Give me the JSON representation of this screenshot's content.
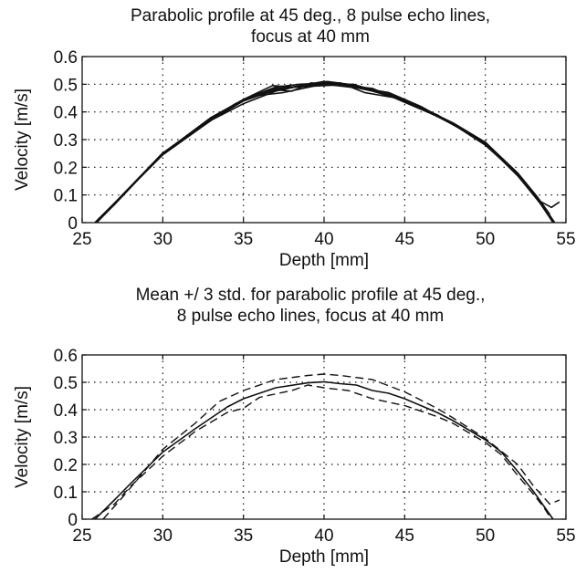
{
  "chart_data": [
    {
      "type": "line",
      "title": [
        "Parabolic profile at 45 deg., 8 pulse echo lines,",
        "focus at 40 mm"
      ],
      "xlabel": "Depth [mm]",
      "ylabel": "Velocity [m/s]",
      "xlim": [
        25,
        55
      ],
      "ylim": [
        0,
        0.6
      ],
      "xticks": [
        "25",
        "30",
        "35",
        "40",
        "45",
        "50",
        "55"
      ],
      "yticks": [
        "0",
        "0.1",
        "0.2",
        "0.3",
        "0.4",
        "0.5",
        "0.6"
      ],
      "grid": true,
      "line_color": "#111111",
      "series": [
        {
          "values": [
            [
              25.8,
              0
            ],
            [
              27,
              0.07
            ],
            [
              30,
              0.245
            ],
            [
              33,
              0.37
            ],
            [
              35,
              0.43
            ],
            [
              37,
              0.475
            ],
            [
              39,
              0.5
            ],
            [
              40,
              0.505
            ],
            [
              41,
              0.5
            ],
            [
              43,
              0.475
            ],
            [
              45,
              0.44
            ],
            [
              48,
              0.36
            ],
            [
              50,
              0.29
            ],
            [
              52,
              0.17
            ],
            [
              53.4,
              0.07
            ],
            [
              54.2,
              0
            ]
          ]
        },
        {
          "values": [
            [
              25.8,
              0
            ],
            [
              27,
              0.065
            ],
            [
              30,
              0.25
            ],
            [
              33,
              0.375
            ],
            [
              35,
              0.445
            ],
            [
              36.8,
              0.495
            ],
            [
              38,
              0.49
            ],
            [
              40,
              0.51
            ],
            [
              41.5,
              0.495
            ],
            [
              43,
              0.485
            ],
            [
              45,
              0.435
            ],
            [
              48,
              0.36
            ],
            [
              50,
              0.285
            ],
            [
              52,
              0.175
            ],
            [
              53.4,
              0.07
            ],
            [
              54.3,
              0
            ]
          ]
        },
        {
          "values": [
            [
              25.9,
              0
            ],
            [
              27,
              0.07
            ],
            [
              30,
              0.25
            ],
            [
              33,
              0.37
            ],
            [
              34.5,
              0.43
            ],
            [
              36,
              0.46
            ],
            [
              37.5,
              0.47
            ],
            [
              39.5,
              0.495
            ],
            [
              41,
              0.505
            ],
            [
              42.5,
              0.47
            ],
            [
              44.5,
              0.45
            ],
            [
              47,
              0.385
            ],
            [
              50,
              0.29
            ],
            [
              52,
              0.18
            ],
            [
              53.2,
              0.095
            ],
            [
              54,
              0.03
            ]
          ]
        },
        {
          "values": [
            [
              25.8,
              0
            ],
            [
              27,
              0.07
            ],
            [
              30,
              0.25
            ],
            [
              33,
              0.38
            ],
            [
              35,
              0.445
            ],
            [
              37,
              0.49
            ],
            [
              38.5,
              0.5
            ],
            [
              40.5,
              0.505
            ],
            [
              42,
              0.49
            ],
            [
              44,
              0.47
            ],
            [
              46,
              0.42
            ],
            [
              48,
              0.355
            ],
            [
              50,
              0.28
            ],
            [
              52,
              0.175
            ],
            [
              53.3,
              0.085
            ],
            [
              54.1,
              0.01
            ]
          ]
        },
        {
          "values": [
            [
              25.9,
              0
            ],
            [
              27,
              0.068
            ],
            [
              30,
              0.248
            ],
            [
              33,
              0.372
            ],
            [
              35,
              0.44
            ],
            [
              37,
              0.48
            ],
            [
              38,
              0.475
            ],
            [
              39.2,
              0.505
            ],
            [
              40.8,
              0.495
            ],
            [
              42.3,
              0.485
            ],
            [
              44,
              0.465
            ],
            [
              45.4,
              0.43
            ],
            [
              48,
              0.355
            ],
            [
              50,
              0.285
            ],
            [
              52,
              0.17
            ],
            [
              53.5,
              0.07
            ],
            [
              54.2,
              0
            ]
          ]
        },
        {
          "values": [
            [
              25.8,
              0
            ],
            [
              27,
              0.07
            ],
            [
              30,
              0.252
            ],
            [
              33,
              0.375
            ],
            [
              35,
              0.44
            ],
            [
              36.5,
              0.47
            ],
            [
              38.2,
              0.49
            ],
            [
              40,
              0.495
            ],
            [
              41.8,
              0.5
            ],
            [
              43.5,
              0.47
            ],
            [
              45,
              0.445
            ],
            [
              48,
              0.36
            ],
            [
              50,
              0.29
            ],
            [
              52,
              0.175
            ],
            [
              53.3,
              0.08
            ],
            [
              54.1,
              0.055
            ],
            [
              54.6,
              0.075
            ]
          ]
        },
        {
          "values": [
            [
              25.8,
              0
            ],
            [
              27,
              0.07
            ],
            [
              30,
              0.248
            ],
            [
              33,
              0.375
            ],
            [
              35,
              0.445
            ],
            [
              37,
              0.485
            ],
            [
              39,
              0.495
            ],
            [
              40.2,
              0.51
            ],
            [
              41.5,
              0.5
            ],
            [
              43,
              0.48
            ],
            [
              45,
              0.445
            ],
            [
              48,
              0.36
            ],
            [
              50,
              0.29
            ],
            [
              52,
              0.175
            ],
            [
              53.4,
              0.075
            ],
            [
              54.2,
              0
            ]
          ]
        },
        {
          "values": [
            [
              25.9,
              0
            ],
            [
              27,
              0.065
            ],
            [
              30,
              0.25
            ],
            [
              33,
              0.37
            ],
            [
              35,
              0.44
            ],
            [
              37,
              0.48
            ],
            [
              38.8,
              0.495
            ],
            [
              40,
              0.5
            ],
            [
              41.2,
              0.495
            ],
            [
              43,
              0.48
            ],
            [
              45,
              0.44
            ],
            [
              47,
              0.39
            ],
            [
              50,
              0.285
            ],
            [
              52,
              0.17
            ],
            [
              53.5,
              0.07
            ],
            [
              54.3,
              0
            ]
          ]
        }
      ]
    },
    {
      "type": "line",
      "title": [
        "Mean +/ 3 std. for parabolic profile at 45 deg.,",
        "8 pulse echo lines, focus at 40 mm"
      ],
      "xlabel": "Depth [mm]",
      "ylabel": "Velocity [m/s]",
      "xlim": [
        25,
        55
      ],
      "ylim": [
        0,
        0.6
      ],
      "xticks": [
        "25",
        "30",
        "35",
        "40",
        "45",
        "50",
        "55"
      ],
      "yticks": [
        "0",
        "0.1",
        "0.2",
        "0.3",
        "0.4",
        "0.5",
        "0.6"
      ],
      "grid": true,
      "line_color": "#111111",
      "series": [
        {
          "style": "solid",
          "values": [
            [
              25.8,
              0
            ],
            [
              27,
              0.07
            ],
            [
              28,
              0.13
            ],
            [
              30,
              0.245
            ],
            [
              32,
              0.33
            ],
            [
              34,
              0.41
            ],
            [
              35,
              0.44
            ],
            [
              37,
              0.48
            ],
            [
              39,
              0.498
            ],
            [
              40,
              0.502
            ],
            [
              41,
              0.495
            ],
            [
              42,
              0.49
            ],
            [
              43,
              0.47
            ],
            [
              44,
              0.46
            ],
            [
              45,
              0.44
            ],
            [
              47,
              0.39
            ],
            [
              48,
              0.36
            ],
            [
              50,
              0.29
            ],
            [
              51,
              0.245
            ],
            [
              52,
              0.175
            ],
            [
              53,
              0.1
            ],
            [
              54.2,
              0
            ]
          ]
        },
        {
          "style": "dashed",
          "values": [
            [
              26.3,
              0
            ],
            [
              27.5,
              0.08
            ],
            [
              28.5,
              0.15
            ],
            [
              30,
              0.255
            ],
            [
              32,
              0.35
            ],
            [
              33.5,
              0.43
            ],
            [
              35,
              0.47
            ],
            [
              37,
              0.51
            ],
            [
              39,
              0.525
            ],
            [
              40,
              0.53
            ],
            [
              41,
              0.525
            ],
            [
              43,
              0.51
            ],
            [
              45,
              0.465
            ],
            [
              47,
              0.405
            ],
            [
              48,
              0.37
            ],
            [
              50,
              0.295
            ],
            [
              52,
              0.2
            ],
            [
              53,
              0.12
            ],
            [
              54,
              0.055
            ],
            [
              54.6,
              0.07
            ]
          ]
        },
        {
          "style": "dashed",
          "values": [
            [
              25.6,
              0
            ],
            [
              27,
              0.055
            ],
            [
              28,
              0.12
            ],
            [
              30,
              0.23
            ],
            [
              32,
              0.32
            ],
            [
              34,
              0.39
            ],
            [
              35,
              0.405
            ],
            [
              36,
              0.445
            ],
            [
              38,
              0.47
            ],
            [
              39,
              0.49
            ],
            [
              40,
              0.48
            ],
            [
              41.5,
              0.47
            ],
            [
              43,
              0.44
            ],
            [
              45,
              0.415
            ],
            [
              47,
              0.375
            ],
            [
              48,
              0.35
            ],
            [
              50,
              0.28
            ],
            [
              51,
              0.235
            ],
            [
              52,
              0.16
            ],
            [
              53,
              0.09
            ],
            [
              53.6,
              0.045
            ],
            [
              54.1,
              0
            ]
          ]
        }
      ]
    }
  ]
}
